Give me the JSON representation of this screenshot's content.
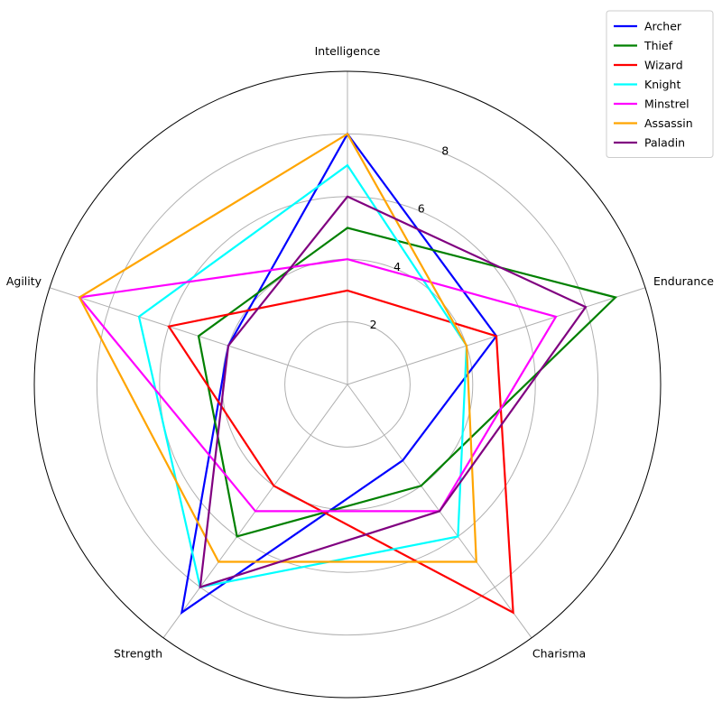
{
  "chart_data": {
    "type": "radar",
    "axes": [
      "Intelligence",
      "Endurance",
      "Charisma",
      "Strength",
      "Agility"
    ],
    "rlim": [
      0,
      10
    ],
    "rticks": [
      2,
      4,
      6,
      8
    ],
    "grid": true,
    "legend": "top-right",
    "series": [
      {
        "name": "Archer",
        "color": "#0000ff",
        "values": [
          8,
          5,
          3,
          9,
          4
        ]
      },
      {
        "name": "Thief",
        "color": "#008000",
        "values": [
          5,
          9,
          4,
          6,
          5
        ]
      },
      {
        "name": "Wizard",
        "color": "#ff0000",
        "values": [
          3,
          5,
          9,
          4,
          6
        ]
      },
      {
        "name": "Knight",
        "color": "#00ffff",
        "values": [
          7,
          4,
          6,
          8,
          7
        ]
      },
      {
        "name": "Minstrel",
        "color": "#ff00ff",
        "values": [
          4,
          7,
          5,
          5,
          9
        ]
      },
      {
        "name": "Assassin",
        "color": "#ffa500",
        "values": [
          8,
          4,
          7,
          7,
          9
        ]
      },
      {
        "name": "Paladin",
        "color": "#800080",
        "values": [
          6,
          8,
          5,
          8,
          4
        ]
      }
    ]
  }
}
